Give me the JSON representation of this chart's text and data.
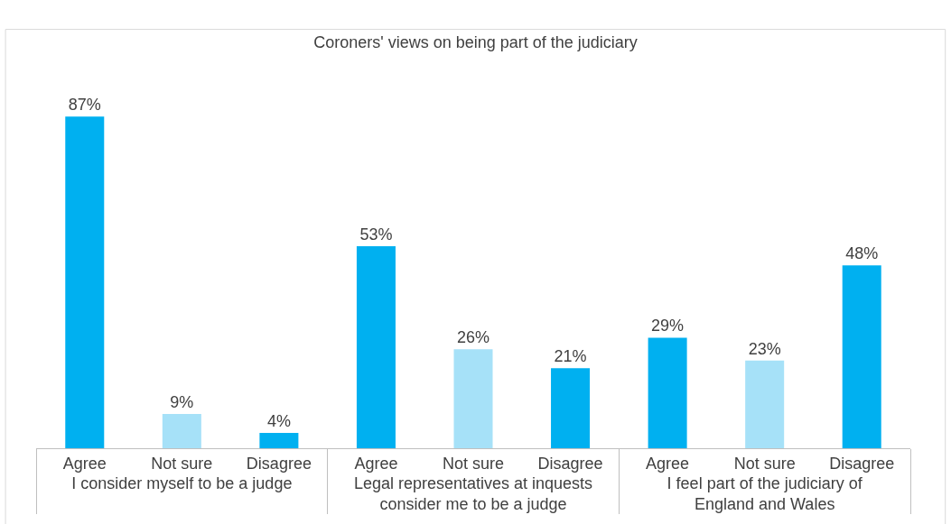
{
  "chart_data": {
    "type": "bar",
    "title": "Coroners' views on being part of the judiciary",
    "categories": [
      "I consider myself to be a judge",
      "Legal representatives at inquests consider me to be a judge",
      "I feel part of the judiciary of England and Wales"
    ],
    "series": [
      {
        "name": "Agree",
        "color": "#00b0f0",
        "values": [
          87,
          53,
          29
        ],
        "value_labels": [
          "87%",
          "53%",
          "29%"
        ]
      },
      {
        "name": "Not sure",
        "color": "#a6e1f8",
        "values": [
          9,
          26,
          23
        ],
        "value_labels": [
          "9%",
          "26%",
          "23%"
        ]
      },
      {
        "name": "Disagree",
        "color": "#00b0f0",
        "values": [
          4,
          21,
          48
        ],
        "value_labels": [
          "4%",
          "21%",
          "48%"
        ]
      }
    ],
    "legend": false
  }
}
